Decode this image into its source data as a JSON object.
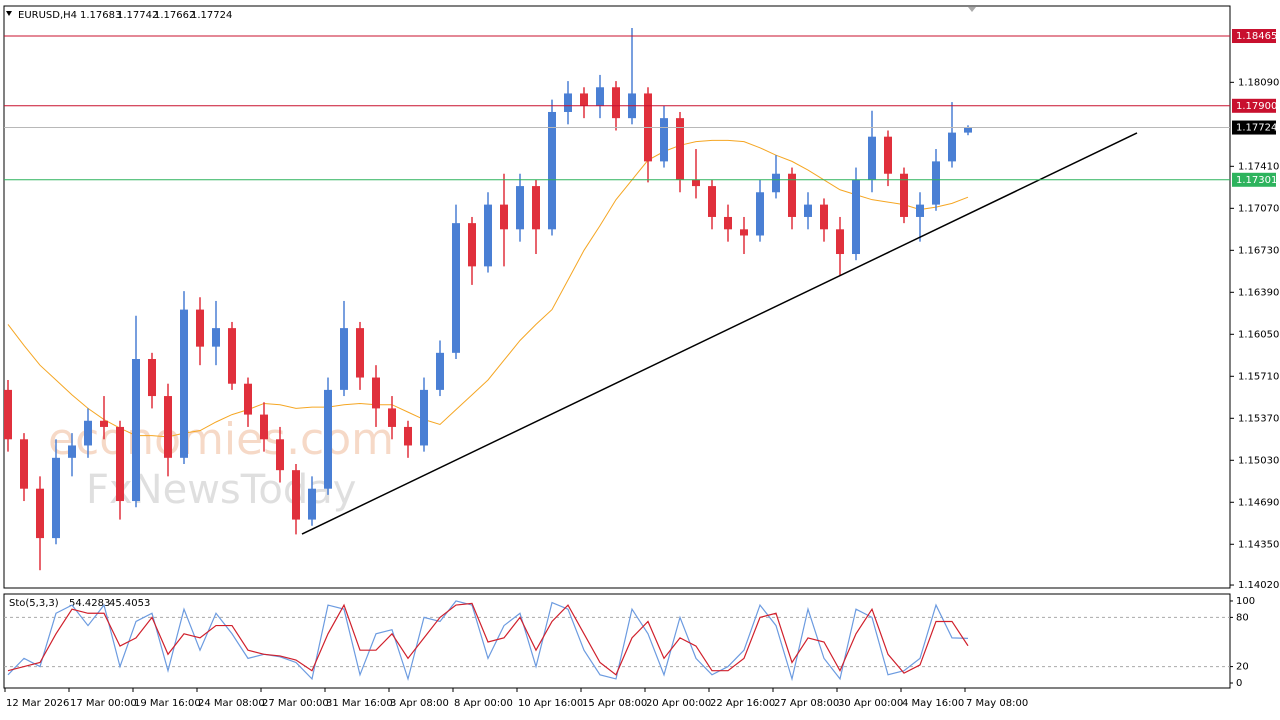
{
  "chart_data": {
    "type": "candlestick",
    "symbol": "EURUSD,H4",
    "up_color": "#4a7fd4",
    "down_color": "#e0303c",
    "ylim": [
      1.13996,
      1.18708
    ],
    "yticks": [
      {
        "value": 1.1402,
        "label": "1.14020"
      },
      {
        "value": 1.1435,
        "label": "1.14350"
      },
      {
        "value": 1.1469,
        "label": "1.14690"
      },
      {
        "value": 1.1503,
        "label": "1.15030"
      },
      {
        "value": 1.1537,
        "label": "1.15370"
      },
      {
        "value": 1.1571,
        "label": "1.15710"
      },
      {
        "value": 1.1605,
        "label": "1.16050"
      },
      {
        "value": 1.1639,
        "label": "1.16390"
      },
      {
        "value": 1.1673,
        "label": "1.16730"
      },
      {
        "value": 1.1707,
        "label": "1.17070"
      },
      {
        "value": 1.1741,
        "label": "1.17410"
      },
      {
        "value": 1.1809,
        "label": "1.18090"
      }
    ],
    "x_labels": [
      {
        "value": 0,
        "label": "12 Mar 2026"
      },
      {
        "value": 4,
        "label": "17 Mar 00:00"
      },
      {
        "value": 8,
        "label": "19 Mar 16:00"
      },
      {
        "value": 12,
        "label": "24 Mar 08:00"
      },
      {
        "value": 16,
        "label": "27 Mar 00:00"
      },
      {
        "value": 20,
        "label": "31 Mar 16:00"
      },
      {
        "value": 24,
        "label": "3 Apr 08:00"
      },
      {
        "value": 28,
        "label": "8 Apr 00:00"
      },
      {
        "value": 32,
        "label": "10 Apr 16:00"
      },
      {
        "value": 36,
        "label": "15 Apr 08:00"
      },
      {
        "value": 40,
        "label": "20 Apr 00:00"
      },
      {
        "value": 44,
        "label": "22 Apr 16:00"
      },
      {
        "value": 48,
        "label": "27 Apr 08:00"
      },
      {
        "value": 52,
        "label": "30 Apr 00:00"
      },
      {
        "value": 56,
        "label": "4 May 16:00"
      },
      {
        "value": 60,
        "label": "7 May 08:00"
      }
    ],
    "candles": [
      [
        1.156,
        1.1568,
        1.151,
        1.152
      ],
      [
        1.152,
        1.1525,
        1.147,
        1.148
      ],
      [
        1.148,
        1.149,
        1.1414,
        1.144
      ],
      [
        1.144,
        1.152,
        1.1435,
        1.1505
      ],
      [
        1.1505,
        1.1525,
        1.149,
        1.1515
      ],
      [
        1.1515,
        1.1545,
        1.1505,
        1.1535
      ],
      [
        1.1535,
        1.1555,
        1.152,
        1.153
      ],
      [
        1.153,
        1.1535,
        1.1455,
        1.147
      ],
      [
        1.147,
        1.162,
        1.1465,
        1.1585
      ],
      [
        1.1585,
        1.159,
        1.1545,
        1.1555
      ],
      [
        1.1555,
        1.1565,
        1.149,
        1.1505
      ],
      [
        1.1505,
        1.164,
        1.15,
        1.1625
      ],
      [
        1.1625,
        1.1635,
        1.158,
        1.1595
      ],
      [
        1.1595,
        1.1632,
        1.158,
        1.161
      ],
      [
        1.161,
        1.1615,
        1.156,
        1.1565
      ],
      [
        1.1565,
        1.157,
        1.153,
        1.154
      ],
      [
        1.154,
        1.155,
        1.151,
        1.152
      ],
      [
        1.152,
        1.153,
        1.1485,
        1.1495
      ],
      [
        1.1495,
        1.15,
        1.1443,
        1.1455
      ],
      [
        1.1455,
        1.149,
        1.145,
        1.148
      ],
      [
        1.148,
        1.157,
        1.1475,
        1.156
      ],
      [
        1.156,
        1.1632,
        1.1555,
        1.161
      ],
      [
        1.161,
        1.1615,
        1.156,
        1.157
      ],
      [
        1.157,
        1.158,
        1.153,
        1.1545
      ],
      [
        1.1545,
        1.1555,
        1.152,
        1.153
      ],
      [
        1.153,
        1.1535,
        1.1505,
        1.1515
      ],
      [
        1.1515,
        1.157,
        1.151,
        1.156
      ],
      [
        1.156,
        1.16,
        1.1555,
        1.159
      ],
      [
        1.159,
        1.171,
        1.1585,
        1.1695
      ],
      [
        1.1695,
        1.17,
        1.1645,
        1.166
      ],
      [
        1.166,
        1.172,
        1.1655,
        1.171
      ],
      [
        1.171,
        1.1735,
        1.166,
        1.169
      ],
      [
        1.169,
        1.1735,
        1.168,
        1.1725
      ],
      [
        1.1725,
        1.173,
        1.167,
        1.169
      ],
      [
        1.169,
        1.1795,
        1.1685,
        1.1785
      ],
      [
        1.1785,
        1.181,
        1.1775,
        1.18
      ],
      [
        1.18,
        1.1805,
        1.178,
        1.179
      ],
      [
        1.179,
        1.1815,
        1.178,
        1.1805
      ],
      [
        1.1805,
        1.181,
        1.177,
        1.178
      ],
      [
        1.178,
        1.1853,
        1.1775,
        1.18
      ],
      [
        1.18,
        1.1805,
        1.1728,
        1.1745
      ],
      [
        1.1745,
        1.179,
        1.174,
        1.178
      ],
      [
        1.178,
        1.1785,
        1.172,
        1.173
      ],
      [
        1.173,
        1.1755,
        1.1715,
        1.1725
      ],
      [
        1.1725,
        1.173,
        1.169,
        1.17
      ],
      [
        1.17,
        1.171,
        1.168,
        1.169
      ],
      [
        1.169,
        1.17,
        1.167,
        1.1685
      ],
      [
        1.1685,
        1.173,
        1.168,
        1.172
      ],
      [
        1.172,
        1.175,
        1.1715,
        1.1735
      ],
      [
        1.1735,
        1.174,
        1.169,
        1.17
      ],
      [
        1.17,
        1.172,
        1.169,
        1.171
      ],
      [
        1.171,
        1.1715,
        1.168,
        1.169
      ],
      [
        1.169,
        1.17,
        1.1653,
        1.167
      ],
      [
        1.167,
        1.174,
        1.1665,
        1.173
      ],
      [
        1.173,
        1.1786,
        1.172,
        1.1765
      ],
      [
        1.1765,
        1.177,
        1.1725,
        1.1735
      ],
      [
        1.1735,
        1.174,
        1.1695,
        1.17
      ],
      [
        1.17,
        1.172,
        1.168,
        1.171
      ],
      [
        1.171,
        1.1755,
        1.1705,
        1.1745
      ],
      [
        1.1745,
        1.1793,
        1.174,
        1.17683
      ],
      [
        1.17683,
        1.17742,
        1.17662,
        1.17724
      ]
    ],
    "ma": {
      "color": "#f5a623",
      "values": [
        1.1613,
        1.1596,
        1.158,
        1.1568,
        1.1556,
        1.1545,
        1.1536,
        1.1529,
        1.1523,
        1.1523,
        1.1522,
        1.1525,
        1.1527,
        1.1534,
        1.154,
        1.1544,
        1.1549,
        1.1548,
        1.1545,
        1.1546,
        1.1546,
        1.1548,
        1.1549,
        1.1548,
        1.1548,
        1.1542,
        1.1536,
        1.1532,
        1.1544,
        1.1556,
        1.1568,
        1.1584,
        1.16,
        1.1613,
        1.1625,
        1.1649,
        1.1673,
        1.1693,
        1.1714,
        1.173,
        1.1746,
        1.1753,
        1.1758,
        1.1761,
        1.1762,
        1.1762,
        1.1761,
        1.1756,
        1.175,
        1.1745,
        1.1738,
        1.173,
        1.1722,
        1.1718,
        1.1714,
        1.1712,
        1.171,
        1.1706,
        1.1708,
        1.1711,
        1.1716
      ]
    },
    "trendline": {
      "color": "#000000",
      "x": [
        18.375,
        70.5625
      ],
      "y": [
        1.14433,
        1.1768
      ]
    },
    "levels": [
      {
        "value": 1.18465,
        "color": "#c8102e"
      },
      {
        "value": 1.179,
        "label": "1.17900",
        "color": "#c8102e"
      },
      {
        "value": 1.17301,
        "color": "#2db35d"
      }
    ],
    "last_price": {
      "line_color": "#b8b8b8",
      "label_color": "#000000"
    },
    "watermark": [
      "economies.com",
      "FxNewsToday"
    ],
    "indicator": {
      "type": "line",
      "title": "Sto(5,3,3)",
      "ylim": [
        -6.1,
        108.5
      ],
      "yticks": [
        0,
        20,
        80,
        100
      ],
      "level_lines": [
        20,
        80
      ],
      "series": [
        {
          "color": "#6c9be0",
          "values": [
            10,
            30,
            20,
            85,
            95,
            70,
            95,
            20,
            75,
            85,
            15,
            90,
            40,
            85,
            60,
            30,
            35,
            32,
            25,
            5,
            95,
            90,
            10,
            60,
            65,
            5,
            80,
            75,
            100,
            95,
            30,
            70,
            85,
            20,
            98,
            90,
            40,
            10,
            5,
            90,
            60,
            10,
            80,
            30,
            10,
            20,
            40,
            95,
            70,
            5,
            90,
            30,
            5,
            90,
            80,
            10,
            15,
            30,
            95,
            55,
            54.4283
          ]
        },
        {
          "color": "#d0202c",
          "values": [
            15,
            20,
            25,
            60,
            90,
            85,
            85,
            45,
            55,
            80,
            35,
            60,
            55,
            70,
            70,
            40,
            35,
            33,
            28,
            15,
            60,
            95,
            40,
            40,
            60,
            30,
            55,
            80,
            95,
            97,
            50,
            55,
            80,
            40,
            75,
            95,
            60,
            25,
            10,
            55,
            75,
            30,
            55,
            45,
            15,
            15,
            30,
            80,
            85,
            25,
            55,
            50,
            15,
            60,
            90,
            35,
            12,
            22,
            75,
            75,
            45.4053
          ]
        }
      ]
    }
  }
}
